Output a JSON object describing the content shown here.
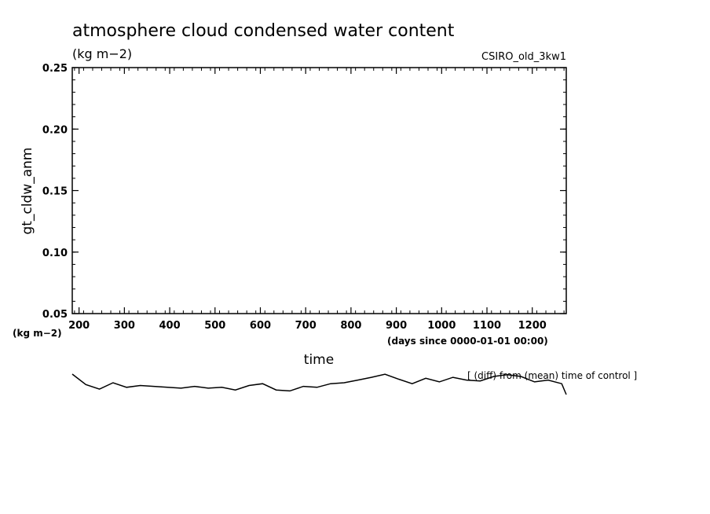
{
  "chart_data": {
    "type": "line",
    "title": "atmosphere cloud condensed water content",
    "units": "(kg m−2)",
    "model": "CSIRO_old_3kw1",
    "ylabel": "gt_cldw_anm",
    "yunits": "(kg m−2)",
    "xlabel": "time",
    "xunits": "(days since 0000-01-01 00:00)",
    "note": "[ (diff) from (mean) time of control ]",
    "xlim": [
      185,
      1275
    ],
    "ylim": [
      0.05,
      0.25
    ],
    "xticks": [
      200,
      300,
      400,
      500,
      600,
      700,
      800,
      900,
      1000,
      1100,
      1200
    ],
    "xtick_labels": [
      "200",
      "300",
      "400",
      "500",
      "600",
      "700",
      "800",
      "900",
      "1000",
      "1100",
      "1200"
    ],
    "yticks": [
      0.05,
      0.1,
      0.15,
      0.2,
      0.25
    ],
    "ytick_labels": [
      "0.05",
      "0.10",
      "0.15",
      "0.20",
      "0.25"
    ],
    "grid": false,
    "line_color": "#000000",
    "series": [
      {
        "x": [
          185,
          215,
          245,
          275,
          305,
          335,
          365,
          395,
          425,
          455,
          485,
          515,
          545,
          575,
          605,
          635,
          665,
          695,
          725,
          755,
          785,
          815,
          845,
          875,
          905,
          935,
          965,
          995,
          1025,
          1055,
          1085,
          1115,
          1145,
          1175,
          1205,
          1235,
          1265,
          1275
        ],
        "y": [
          0.0003,
          -0.0055,
          -0.008,
          -0.0045,
          -0.007,
          -0.006,
          -0.0065,
          -0.007,
          -0.0075,
          -0.0065,
          -0.0075,
          -0.007,
          -0.0085,
          -0.006,
          -0.005,
          -0.0085,
          -0.009,
          -0.0065,
          -0.007,
          -0.005,
          -0.0045,
          -0.003,
          -0.0015,
          0.0002,
          -0.0025,
          -0.005,
          -0.002,
          -0.004,
          -0.0015,
          -0.003,
          -0.0035,
          -0.001,
          0.0,
          -0.001,
          -0.004,
          -0.003,
          -0.005,
          -0.011
        ]
      }
    ]
  }
}
